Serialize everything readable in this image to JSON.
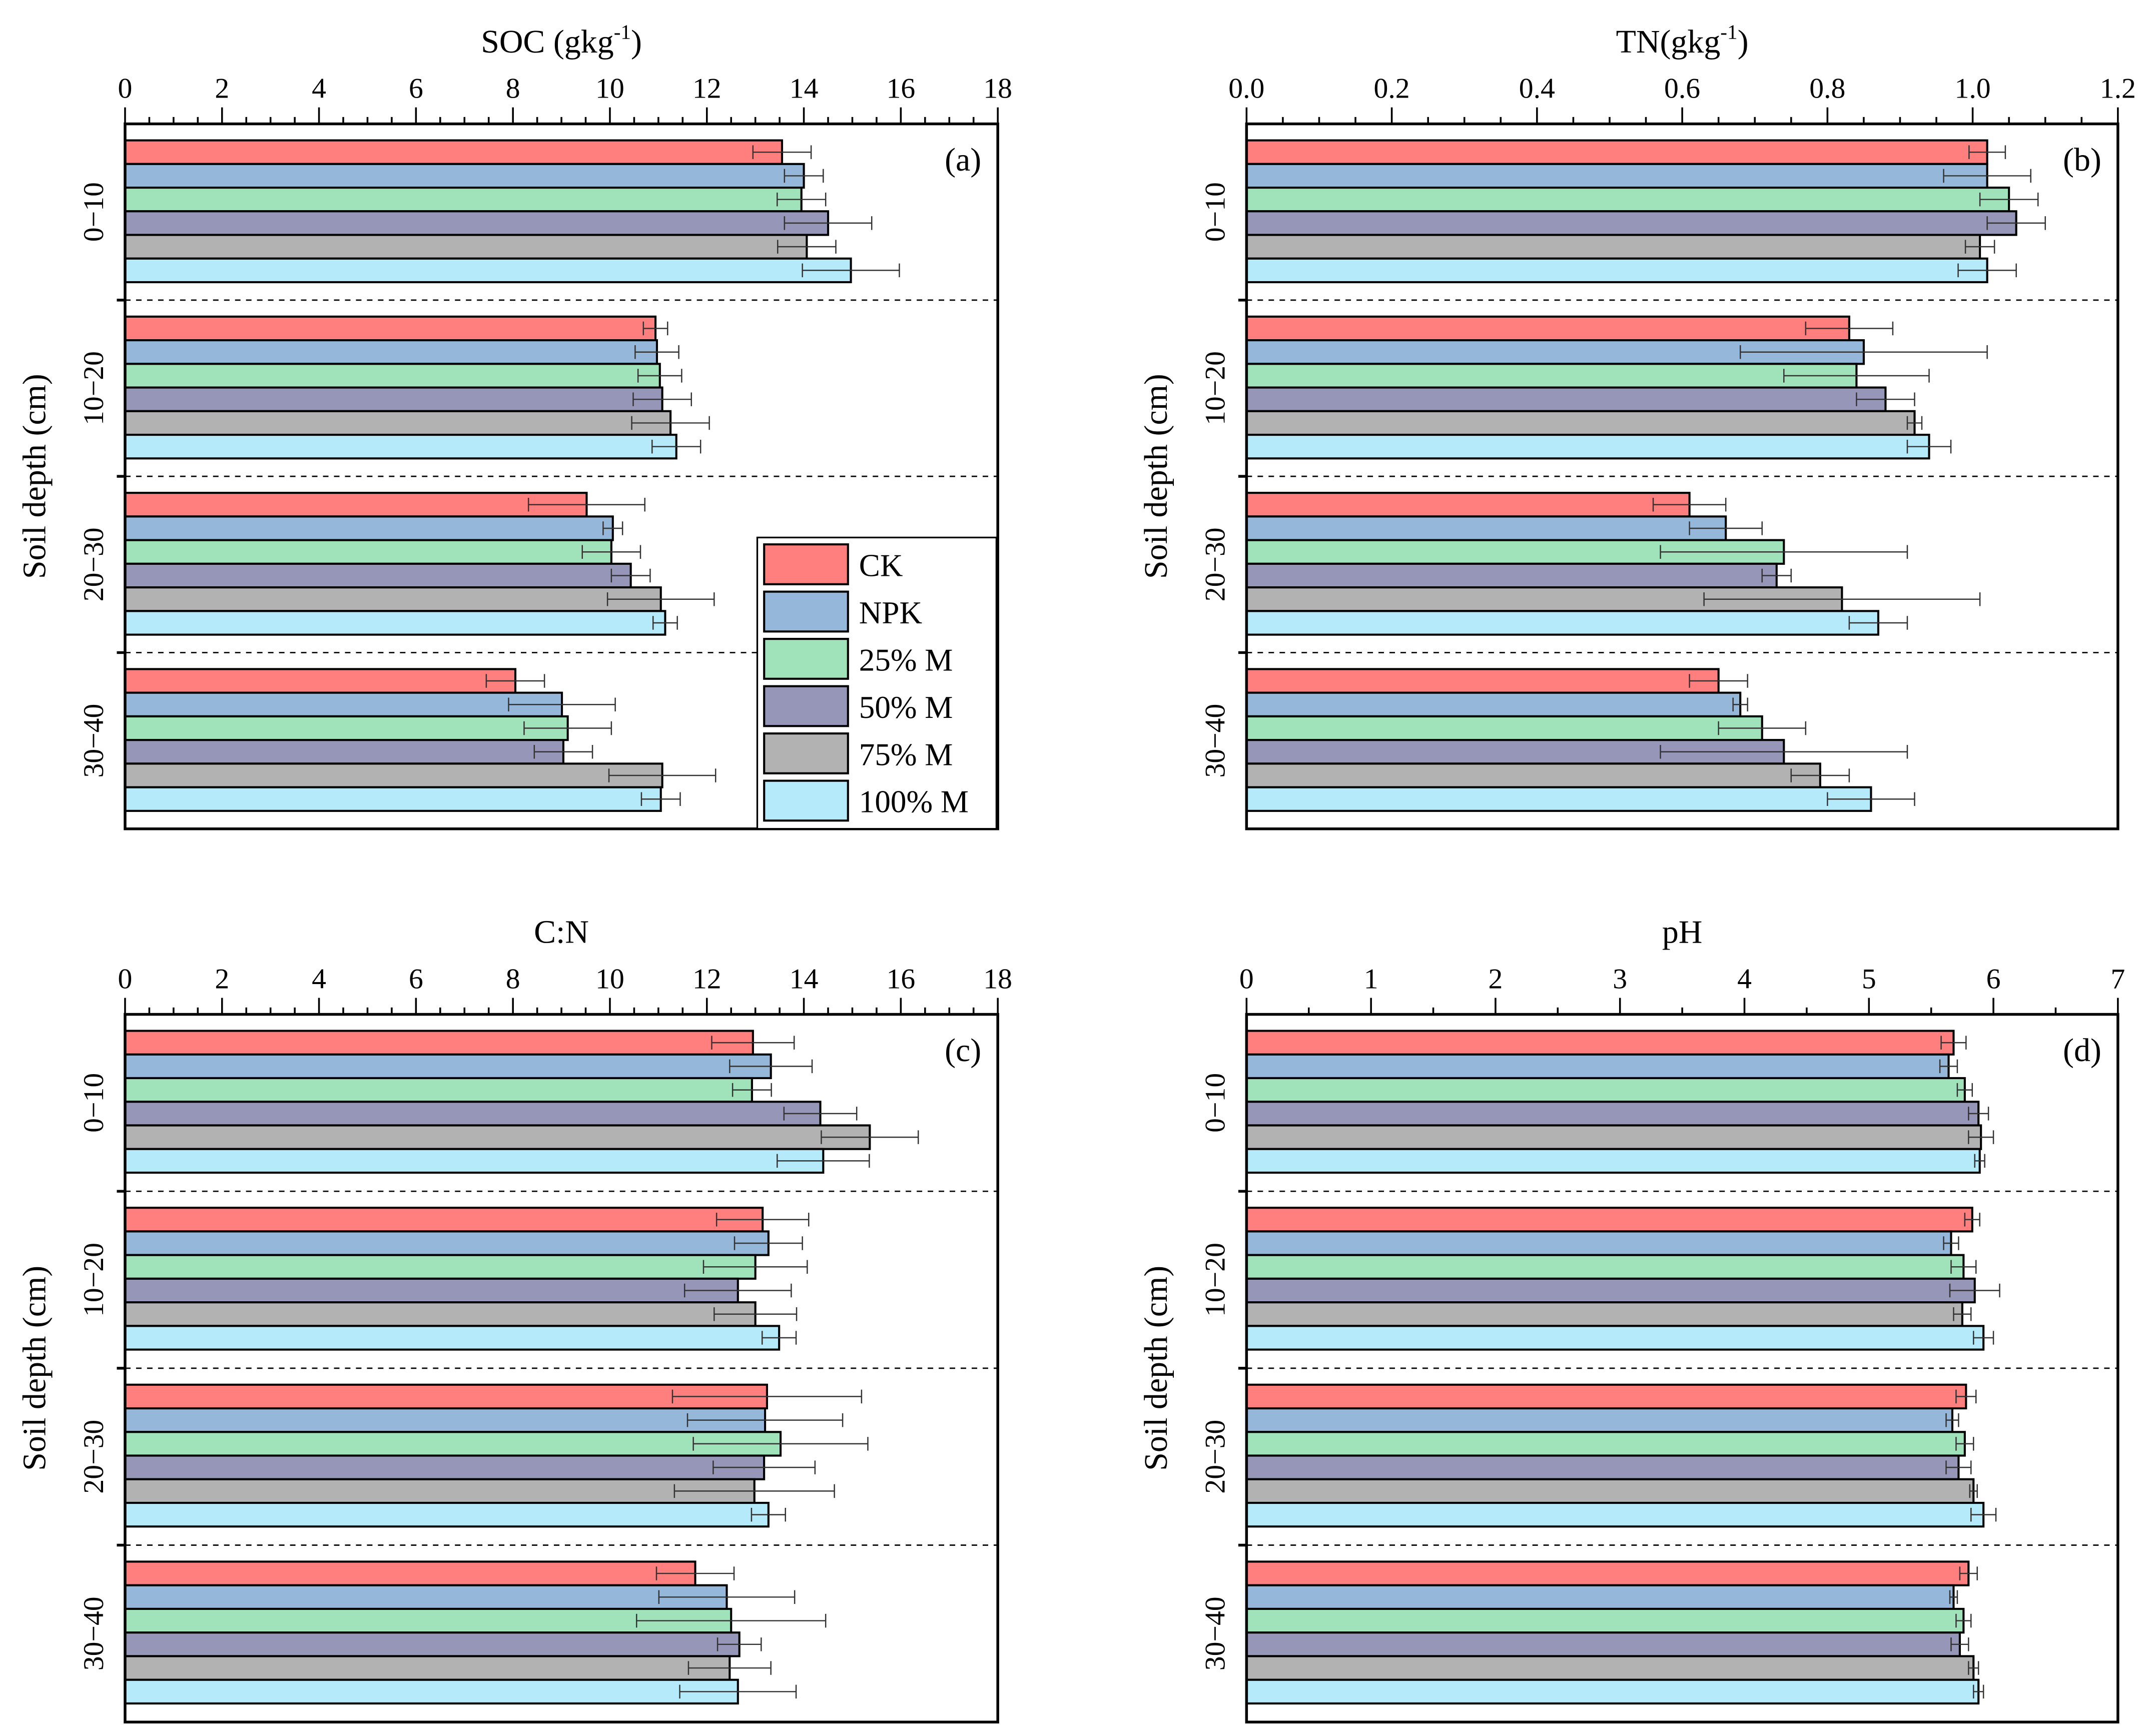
{
  "legend": {
    "items": [
      {
        "name": "CK",
        "color": "#FF7F7F"
      },
      {
        "name": "NPK",
        "color": "#95B7DA"
      },
      {
        "name": "25% M",
        "color": "#A0E2BA"
      },
      {
        "name": "50% M",
        "color": "#9696B8"
      },
      {
        "name": "75% M",
        "color": "#B2B2B2"
      },
      {
        "name": "100% M",
        "color": "#B4EAFA"
      }
    ]
  },
  "chart_data": [
    {
      "type": "bar",
      "orientation": "horizontal",
      "panel_label": "(a)",
      "title_main": "SOC (gkg",
      "title_sup": "-1",
      "title_end": ")",
      "ylabel": "Soil depth (cm)",
      "xlim": [
        0,
        18
      ],
      "xtick_values": [
        0,
        2,
        4,
        6,
        8,
        10,
        12,
        14,
        16,
        18
      ],
      "xtick_labels": [
        "0",
        "2",
        "4",
        "6",
        "8",
        "10",
        "12",
        "14",
        "16",
        "18"
      ],
      "categories": [
        "0−10",
        "10−20",
        "20−30",
        "30−40"
      ],
      "series": [
        {
          "name": "CK",
          "values": [
            13.55,
            10.94,
            9.52,
            8.05
          ],
          "errors": [
            0.6,
            0.25,
            1.2,
            0.6
          ]
        },
        {
          "name": "NPK",
          "values": [
            14.0,
            10.97,
            10.06,
            9.01
          ],
          "errors": [
            0.4,
            0.45,
            0.2,
            1.1
          ]
        },
        {
          "name": "25% M",
          "values": [
            13.95,
            11.03,
            10.03,
            9.13
          ],
          "errors": [
            0.5,
            0.45,
            0.6,
            0.9
          ]
        },
        {
          "name": "50% M",
          "values": [
            14.5,
            11.08,
            10.43,
            9.04
          ],
          "errors": [
            0.9,
            0.6,
            0.4,
            0.6
          ]
        },
        {
          "name": "75% M",
          "values": [
            14.06,
            11.25,
            11.05,
            11.08
          ],
          "errors": [
            0.6,
            0.8,
            1.1,
            1.1
          ]
        },
        {
          "name": "100% M",
          "values": [
            14.97,
            11.37,
            11.14,
            11.05
          ],
          "errors": [
            1.0,
            0.5,
            0.25,
            0.4
          ]
        }
      ],
      "legend_position": "bottom-right"
    },
    {
      "type": "bar",
      "orientation": "horizontal",
      "panel_label": "(b)",
      "title_main": "TN(gkg",
      "title_sup": "-1",
      "title_end": ")",
      "ylabel": "Soil depth (cm)",
      "xlim": [
        0,
        1.2
      ],
      "xtick_values": [
        0,
        0.2,
        0.4,
        0.6,
        0.8,
        1.0,
        1.2
      ],
      "xtick_labels": [
        "0.0",
        "0.2",
        "0.4",
        "0.6",
        "0.8",
        "1.0",
        "1.2"
      ],
      "categories": [
        "0−10",
        "10−20",
        "20−30",
        "30−40"
      ],
      "series": [
        {
          "name": "CK",
          "values": [
            1.02,
            0.83,
            0.61,
            0.65
          ],
          "errors": [
            0.025,
            0.06,
            0.05,
            0.04
          ]
        },
        {
          "name": "NPK",
          "values": [
            1.02,
            0.85,
            0.66,
            0.68
          ],
          "errors": [
            0.06,
            0.17,
            0.05,
            0.01
          ]
        },
        {
          "name": "25% M",
          "values": [
            1.05,
            0.84,
            0.74,
            0.71
          ],
          "errors": [
            0.04,
            0.1,
            0.17,
            0.06
          ]
        },
        {
          "name": "50% M",
          "values": [
            1.06,
            0.88,
            0.73,
            0.74
          ],
          "errors": [
            0.04,
            0.04,
            0.02,
            0.17
          ]
        },
        {
          "name": "75% M",
          "values": [
            1.01,
            0.92,
            0.82,
            0.79
          ],
          "errors": [
            0.02,
            0.01,
            0.19,
            0.04
          ]
        },
        {
          "name": "100% M",
          "values": [
            1.02,
            0.94,
            0.87,
            0.86
          ],
          "errors": [
            0.04,
            0.03,
            0.04,
            0.06
          ]
        }
      ]
    },
    {
      "type": "bar",
      "orientation": "horizontal",
      "panel_label": "(c)",
      "title_main": "C:N",
      "title_sup": "",
      "title_end": "",
      "ylabel": "Soil depth (cm)",
      "xlim": [
        0,
        18
      ],
      "xtick_values": [
        0,
        2,
        4,
        6,
        8,
        10,
        12,
        14,
        16,
        18
      ],
      "xtick_labels": [
        "0",
        "2",
        "4",
        "6",
        "8",
        "10",
        "12",
        "14",
        "16",
        "18"
      ],
      "categories": [
        "0−10",
        "10−20",
        "20−30",
        "30−40"
      ],
      "series": [
        {
          "name": "CK",
          "values": [
            12.95,
            13.15,
            13.24,
            11.76
          ],
          "errors": [
            0.85,
            0.95,
            1.95,
            0.8
          ]
        },
        {
          "name": "NPK",
          "values": [
            13.32,
            13.27,
            13.2,
            12.41
          ],
          "errors": [
            0.85,
            0.7,
            1.6,
            1.4
          ]
        },
        {
          "name": "25% M",
          "values": [
            12.93,
            13.0,
            13.52,
            12.5
          ],
          "errors": [
            0.4,
            1.07,
            1.8,
            1.95
          ]
        },
        {
          "name": "50% M",
          "values": [
            14.34,
            12.64,
            13.18,
            12.67
          ],
          "errors": [
            0.75,
            1.1,
            1.05,
            0.45
          ]
        },
        {
          "name": "75% M",
          "values": [
            15.36,
            13.0,
            12.98,
            12.47
          ],
          "errors": [
            1.0,
            0.85,
            1.65,
            0.85
          ]
        },
        {
          "name": "100% M",
          "values": [
            14.4,
            13.49,
            13.27,
            12.64
          ],
          "errors": [
            0.95,
            0.35,
            0.35,
            1.2
          ]
        }
      ]
    },
    {
      "type": "bar",
      "orientation": "horizontal",
      "panel_label": "(d)",
      "title_main": "pH",
      "title_sup": "",
      "title_end": "",
      "ylabel": "Soil depth (cm)",
      "xlim": [
        0,
        7
      ],
      "xtick_values": [
        0,
        1,
        2,
        3,
        4,
        5,
        6,
        7
      ],
      "xtick_labels": [
        "0",
        "1",
        "2",
        "3",
        "4",
        "5",
        "6",
        "7"
      ],
      "categories": [
        "0−10",
        "10−20",
        "20−30",
        "30−40"
      ],
      "series": [
        {
          "name": "CK",
          "values": [
            5.68,
            5.83,
            5.78,
            5.8
          ],
          "errors": [
            0.1,
            0.06,
            0.08,
            0.07
          ]
        },
        {
          "name": "NPK",
          "values": [
            5.64,
            5.66,
            5.67,
            5.68
          ],
          "errors": [
            0.07,
            0.06,
            0.05,
            0.03
          ]
        },
        {
          "name": "25% M",
          "values": [
            5.77,
            5.76,
            5.77,
            5.76
          ],
          "errors": [
            0.06,
            0.1,
            0.07,
            0.06
          ]
        },
        {
          "name": "50% M",
          "values": [
            5.88,
            5.85,
            5.72,
            5.73
          ],
          "errors": [
            0.08,
            0.2,
            0.1,
            0.07
          ]
        },
        {
          "name": "75% M",
          "values": [
            5.9,
            5.75,
            5.84,
            5.84
          ],
          "errors": [
            0.1,
            0.07,
            0.03,
            0.04
          ]
        },
        {
          "name": "100% M",
          "values": [
            5.89,
            5.92,
            5.92,
            5.88
          ],
          "errors": [
            0.04,
            0.08,
            0.1,
            0.04
          ]
        }
      ]
    }
  ]
}
